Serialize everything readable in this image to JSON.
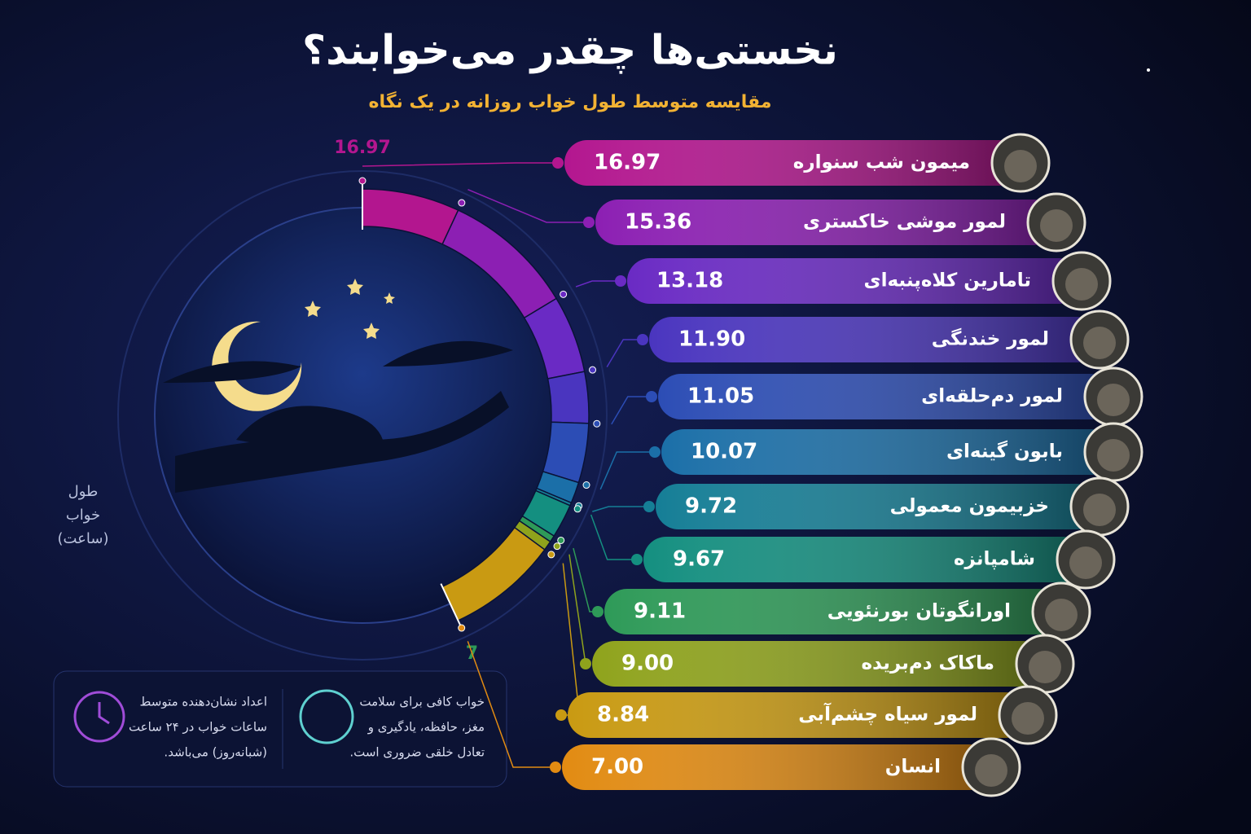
{
  "chart_data": {
    "type": "radial-ranking",
    "title": "نخستی‌ها چقدر می‌خوابند؟",
    "subtitle": "مقایسه متوسط طول خواب روزانه در یک نگاه",
    "y_label_lines": [
      "طول",
      "خواب",
      "(ساعت)"
    ],
    "categories": [
      "میمون شب سنواره",
      "لمور موشی خاکستری",
      "تامارین کلاه‌پنبه‌ای",
      "لمور خندنگی",
      "لمور دم‌حلقه‌ای",
      "بابون گینه‌ای",
      "خزبیمون معمولی",
      "شامپانزه",
      "اورانگوتان بورنئویی",
      "ماکاک دم‌بریده",
      "لمور سیاه چشم‌آبی",
      "انسان"
    ],
    "values": [
      16.97,
      15.36,
      13.18,
      11.9,
      11.05,
      10.07,
      9.72,
      9.67,
      9.11,
      9,
      8.84,
      7
    ],
    "value_labels": [
      "16.97",
      "15.36",
      "13.18",
      "11.90",
      "11.05",
      "10.07",
      "9.72",
      "9.67",
      "9.11",
      "9.00",
      "8.84",
      "7.00"
    ],
    "colors": [
      "#b3168f",
      "#8c1fb3",
      "#6a2ac4",
      "#4a35bf",
      "#2c4db5",
      "#1b6fa8",
      "#157e96",
      "#148f80",
      "#2e9a58",
      "#8fa31c",
      "#c99a12",
      "#e28b12"
    ],
    "ylim": [
      7,
      16.97
    ],
    "yticks": [
      7,
      16.97
    ],
    "notes": [
      [
        "خواب کافی برای سلامت",
        "مغز، حافظه، یادگیری و",
        "تعادل خلقی ضروری است."
      ],
      [
        "اعداد نشان‌دهنده متوسط",
        "ساعات خواب در ۲۴ ساعت",
        "(شبانه‌روز) می‌باشد."
      ]
    ]
  }
}
